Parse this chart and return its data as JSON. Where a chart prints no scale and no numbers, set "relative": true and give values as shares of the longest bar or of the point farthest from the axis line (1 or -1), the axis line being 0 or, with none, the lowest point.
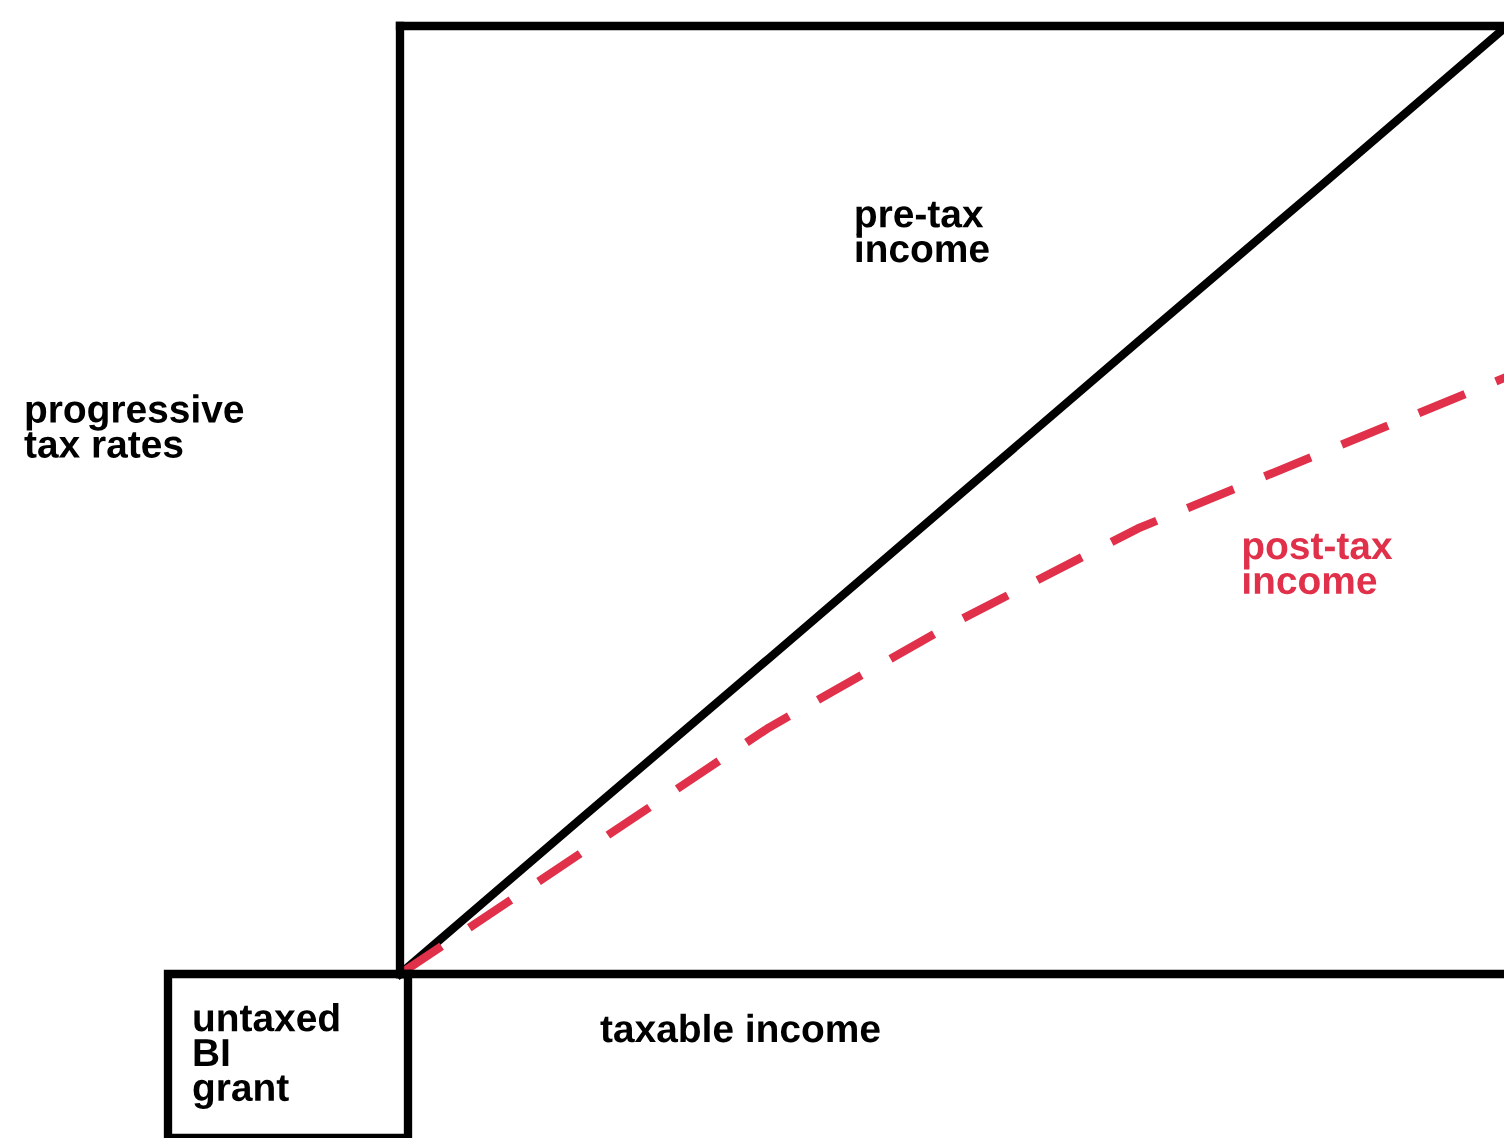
{
  "chart_data": {
    "type": "line",
    "relative": true,
    "categories": [
      null,
      null,
      null,
      null,
      null,
      null,
      null
    ],
    "series": [
      {
        "name": "pre-tax income",
        "color": "#000000",
        "line_style": "solid",
        "values": [
          0,
          0.167,
          0.333,
          0.5,
          0.667,
          0.833,
          1
        ]
      },
      {
        "name": "post-tax income",
        "color": "#e0304a",
        "line_style": "dashed",
        "values": [
          0,
          0.13,
          0.26,
          0.37,
          0.47,
          0.55,
          0.63
        ]
      }
    ],
    "annotations": [
      "progressive tax rates",
      "taxable income",
      "untaxed BI grant"
    ],
    "marker": "none"
  }
}
